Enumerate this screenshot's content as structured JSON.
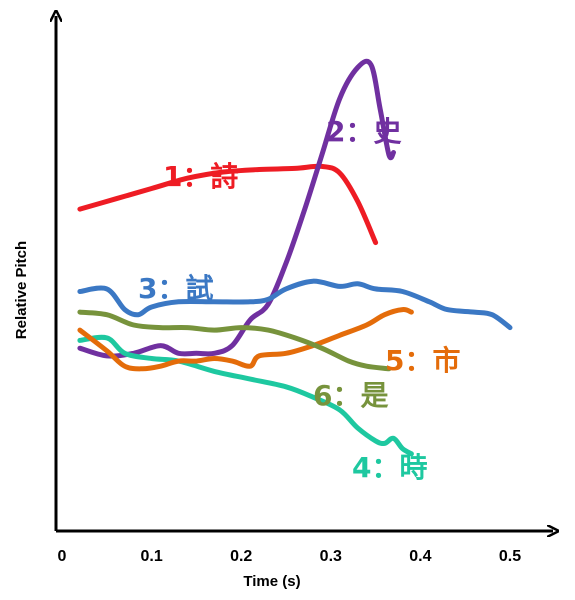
{
  "chart_data": {
    "type": "line",
    "title": "",
    "xlabel": "Time (s)",
    "ylabel": "Relative Pitch",
    "xlim": [
      0,
      0.5
    ],
    "ylim": [
      0,
      10
    ],
    "x_ticks": [
      "0",
      "0.1",
      "0.2",
      "0.3",
      "0.4",
      "0.5"
    ],
    "x_tick_values": [
      0,
      0.1,
      0.2,
      0.3,
      0.4,
      0.5
    ],
    "grid": false,
    "legend": "inline labels",
    "series": [
      {
        "name": "1：詩",
        "color": "#ee1c24",
        "points": [
          [
            0.02,
            6.25
          ],
          [
            0.06,
            6.45
          ],
          [
            0.1,
            6.65
          ],
          [
            0.14,
            6.85
          ],
          [
            0.18,
            6.97
          ],
          [
            0.22,
            7.02
          ],
          [
            0.26,
            7.04
          ],
          [
            0.29,
            7.08
          ],
          [
            0.31,
            6.95
          ],
          [
            0.33,
            6.4
          ],
          [
            0.35,
            5.6
          ]
        ]
      },
      {
        "name": "2：史",
        "color": "#7030a0",
        "points": [
          [
            0.02,
            3.55
          ],
          [
            0.05,
            3.4
          ],
          [
            0.08,
            3.45
          ],
          [
            0.11,
            3.6
          ],
          [
            0.13,
            3.45
          ],
          [
            0.15,
            3.45
          ],
          [
            0.17,
            3.45
          ],
          [
            0.19,
            3.6
          ],
          [
            0.21,
            4.1
          ],
          [
            0.23,
            4.4
          ],
          [
            0.25,
            5.2
          ],
          [
            0.27,
            6.2
          ],
          [
            0.29,
            7.3
          ],
          [
            0.31,
            8.4
          ],
          [
            0.33,
            9.0
          ],
          [
            0.345,
            9.05
          ],
          [
            0.355,
            8.2
          ],
          [
            0.365,
            7.3
          ],
          [
            0.37,
            7.35
          ]
        ]
      },
      {
        "name": "3：試",
        "color": "#3b78c4",
        "points": [
          [
            0.02,
            4.65
          ],
          [
            0.05,
            4.7
          ],
          [
            0.07,
            4.3
          ],
          [
            0.085,
            4.2
          ],
          [
            0.1,
            4.35
          ],
          [
            0.13,
            4.45
          ],
          [
            0.17,
            4.45
          ],
          [
            0.21,
            4.45
          ],
          [
            0.23,
            4.5
          ],
          [
            0.25,
            4.7
          ],
          [
            0.28,
            4.85
          ],
          [
            0.31,
            4.75
          ],
          [
            0.33,
            4.8
          ],
          [
            0.35,
            4.7
          ],
          [
            0.38,
            4.65
          ],
          [
            0.41,
            4.45
          ],
          [
            0.43,
            4.3
          ],
          [
            0.46,
            4.25
          ],
          [
            0.48,
            4.2
          ],
          [
            0.5,
            3.95
          ]
        ]
      },
      {
        "name": "4：時",
        "color": "#1ec8a0",
        "points": [
          [
            0.02,
            3.7
          ],
          [
            0.05,
            3.75
          ],
          [
            0.07,
            3.45
          ],
          [
            0.1,
            3.35
          ],
          [
            0.13,
            3.3
          ],
          [
            0.17,
            3.1
          ],
          [
            0.21,
            2.95
          ],
          [
            0.25,
            2.8
          ],
          [
            0.28,
            2.6
          ],
          [
            0.31,
            2.35
          ],
          [
            0.33,
            2.0
          ],
          [
            0.35,
            1.75
          ],
          [
            0.36,
            1.7
          ],
          [
            0.37,
            1.8
          ],
          [
            0.38,
            1.6
          ],
          [
            0.39,
            1.5
          ]
        ]
      },
      {
        "name": "5：市",
        "color": "#e46c0a",
        "points": [
          [
            0.02,
            3.9
          ],
          [
            0.05,
            3.5
          ],
          [
            0.07,
            3.2
          ],
          [
            0.09,
            3.15
          ],
          [
            0.11,
            3.2
          ],
          [
            0.13,
            3.3
          ],
          [
            0.15,
            3.3
          ],
          [
            0.17,
            3.35
          ],
          [
            0.19,
            3.3
          ],
          [
            0.21,
            3.2
          ],
          [
            0.22,
            3.4
          ],
          [
            0.25,
            3.45
          ],
          [
            0.28,
            3.6
          ],
          [
            0.31,
            3.8
          ],
          [
            0.34,
            4.0
          ],
          [
            0.36,
            4.2
          ],
          [
            0.38,
            4.3
          ],
          [
            0.39,
            4.25
          ]
        ]
      },
      {
        "name": "6：是",
        "color": "#77933c",
        "points": [
          [
            0.02,
            4.25
          ],
          [
            0.05,
            4.2
          ],
          [
            0.08,
            4.0
          ],
          [
            0.11,
            3.95
          ],
          [
            0.14,
            3.95
          ],
          [
            0.17,
            3.9
          ],
          [
            0.2,
            3.95
          ],
          [
            0.23,
            3.9
          ],
          [
            0.26,
            3.75
          ],
          [
            0.29,
            3.55
          ],
          [
            0.32,
            3.3
          ],
          [
            0.34,
            3.2
          ],
          [
            0.365,
            3.15
          ]
        ]
      }
    ]
  }
}
